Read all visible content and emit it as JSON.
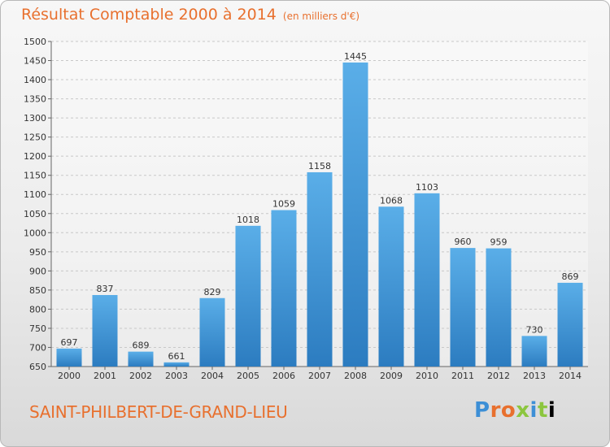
{
  "header": {
    "title": "Résultat Comptable 2000 à 2014",
    "unit": "(en milliers d'€)"
  },
  "footer": {
    "commune": "SAINT-PHILBERT-DE-GRAND-LIEU",
    "logo_text": "Proxiti"
  },
  "colors": {
    "title": "#e8702e",
    "bar_top": "#5aaee8",
    "bar_bottom": "#2c7cc0"
  },
  "chart_data": {
    "type": "bar",
    "title": "Résultat Comptable 2000 à 2014",
    "subtitle": "(en milliers d'€)",
    "categories": [
      "2000",
      "2001",
      "2002",
      "2003",
      "2004",
      "2005",
      "2006",
      "2007",
      "2008",
      "2009",
      "2010",
      "2011",
      "2012",
      "2013",
      "2014"
    ],
    "values": [
      697,
      837,
      689,
      661,
      829,
      1018,
      1059,
      1158,
      1445,
      1068,
      1103,
      960,
      959,
      730,
      869
    ],
    "ylim": [
      650,
      1500
    ],
    "yticks": [
      650,
      700,
      750,
      800,
      850,
      900,
      950,
      1000,
      1050,
      1100,
      1150,
      1200,
      1250,
      1300,
      1350,
      1400,
      1450,
      1500
    ],
    "grid": true,
    "data_labels": true
  }
}
